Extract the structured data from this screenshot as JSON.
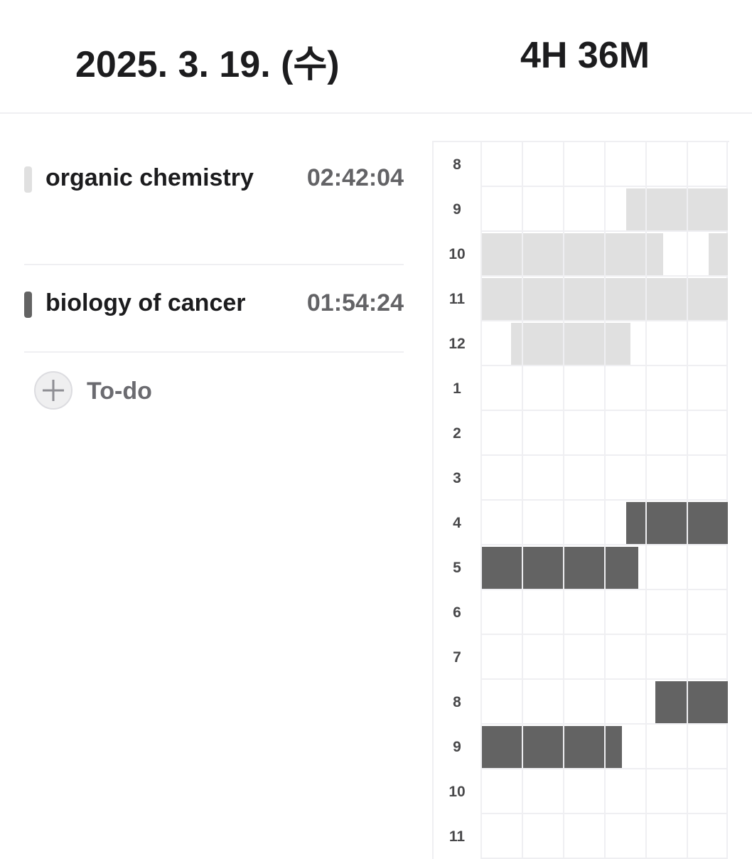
{
  "header": {
    "date": "2025. 3. 19. (수)",
    "total_time": "4H 36M"
  },
  "tasks": [
    {
      "name": "organic chemistry",
      "time": "02:42:04",
      "color": "#e0e0e0"
    },
    {
      "name": "biology of cancer",
      "time": "01:54:24",
      "color": "#636363"
    }
  ],
  "todo": {
    "label": "To-do",
    "icon": "plus-icon"
  },
  "timetable": {
    "minutes_per_column": 10,
    "hours": [
      "8",
      "9",
      "10",
      "11",
      "12",
      "1",
      "2",
      "3",
      "4",
      "5",
      "6",
      "7",
      "8",
      "9",
      "10",
      "11"
    ],
    "sessions": [
      {
        "task": 0,
        "hour_index": 1,
        "start_min": 35,
        "end_min": 60
      },
      {
        "task": 0,
        "hour_index": 2,
        "start_min": 0,
        "end_min": 44
      },
      {
        "task": 0,
        "hour_index": 2,
        "start_min": 55,
        "end_min": 60
      },
      {
        "task": 0,
        "hour_index": 3,
        "start_min": 0,
        "end_min": 60
      },
      {
        "task": 0,
        "hour_index": 4,
        "start_min": 7,
        "end_min": 36
      },
      {
        "task": 1,
        "hour_index": 8,
        "start_min": 35,
        "end_min": 60
      },
      {
        "task": 1,
        "hour_index": 9,
        "start_min": 0,
        "end_min": 38
      },
      {
        "task": 1,
        "hour_index": 12,
        "start_min": 42,
        "end_min": 60
      },
      {
        "task": 1,
        "hour_index": 13,
        "start_min": 0,
        "end_min": 34
      }
    ]
  }
}
